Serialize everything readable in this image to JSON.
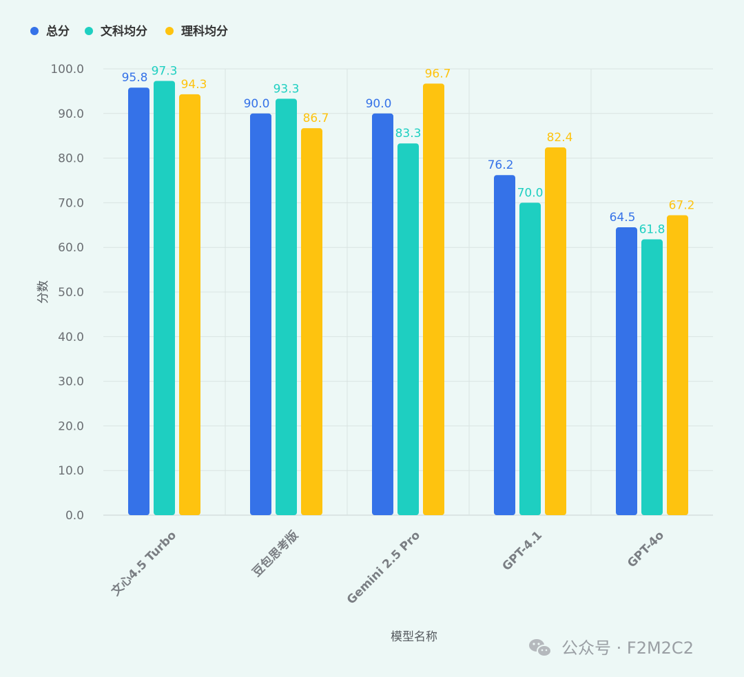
{
  "chart_data": {
    "type": "bar",
    "title": "",
    "xlabel": "模型名称",
    "ylabel": "分数",
    "ylim": [
      0,
      100
    ],
    "yticks": [
      "0.0",
      "10.0",
      "20.0",
      "30.0",
      "40.0",
      "50.0",
      "60.0",
      "70.0",
      "80.0",
      "90.0",
      "100.0"
    ],
    "grid": true,
    "legend_position": "top-left",
    "categories": [
      "文心4.5 Turbo",
      "豆包思考版",
      "Gemini 2.5 Pro",
      "GPT-4.1",
      "GPT-4o"
    ],
    "series": [
      {
        "name": "总分",
        "color": "#3572e8",
        "values": [
          95.8,
          90.0,
          90.0,
          76.2,
          64.5
        ]
      },
      {
        "name": "文科均分",
        "color": "#1ecfc1",
        "values": [
          97.3,
          93.3,
          83.3,
          70.0,
          61.8
        ]
      },
      {
        "name": "理科均分",
        "color": "#fec30f",
        "values": [
          94.3,
          86.7,
          96.7,
          82.4,
          67.2
        ]
      }
    ]
  },
  "watermark": {
    "icon": "wechat-icon",
    "text": "公众号 · F2M2C2"
  }
}
